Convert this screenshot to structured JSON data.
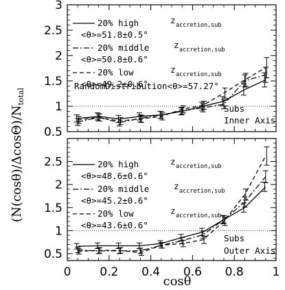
{
  "figure": {
    "ylabel": "(N(cosθ)/ΔcosΘ)/N",
    "ylabel_sub": "total",
    "xlabel": "cosθ"
  },
  "chart_data": [
    {
      "type": "line",
      "panel": "top",
      "x": [
        0.05,
        0.15,
        0.25,
        0.35,
        0.45,
        0.55,
        0.65,
        0.75,
        0.85,
        0.95
      ],
      "xlim": [
        0,
        1
      ],
      "ylim": [
        0.5,
        3
      ],
      "yticks": [
        0.5,
        1,
        1.5,
        2,
        2.5,
        3
      ],
      "ytick_labels": [
        "0.5",
        "1",
        "1.5",
        "2",
        "2.5",
        "3"
      ],
      "xticks": [
        0,
        0.2,
        0.4,
        0.6,
        0.8,
        1
      ],
      "xtick_labels": [
        "0",
        "0.2",
        "0.4",
        "0.6",
        "0.8",
        "1"
      ],
      "reference_line": 1,
      "series": [
        {
          "name": "20% high",
          "label_sub": "accretion,sub",
          "label_stat": "<θ>=51.8±0.5°",
          "dash": "solid",
          "values": [
            0.76,
            0.8,
            0.75,
            0.8,
            0.83,
            0.9,
            1.0,
            1.1,
            1.33,
            1.52
          ],
          "errors": [
            0.07,
            0.07,
            0.07,
            0.07,
            0.07,
            0.07,
            0.08,
            0.09,
            0.11,
            0.14
          ]
        },
        {
          "name": "20% middle",
          "label_sub": "accretion,sub",
          "label_stat": "<θ>=50.8±0.6°",
          "dash": "dashdot",
          "values": [
            0.69,
            0.78,
            0.68,
            0.76,
            0.83,
            0.91,
            0.97,
            1.04,
            1.5,
            1.62
          ],
          "errors": [
            0.07,
            0.07,
            0.07,
            0.07,
            0.07,
            0.07,
            0.08,
            0.09,
            0.12,
            0.15
          ]
        },
        {
          "name": "20% low",
          "label_sub": "accretion,sub",
          "label_stat": "<θ>=49.2±0.6°",
          "dash": "dashed",
          "values": [
            0.73,
            0.78,
            0.71,
            0.75,
            0.8,
            0.94,
            1.02,
            1.26,
            1.52,
            1.76
          ],
          "errors": [
            0.07,
            0.07,
            0.07,
            0.07,
            0.07,
            0.07,
            0.08,
            0.1,
            0.13,
            0.2
          ]
        }
      ],
      "annotations": {
        "random": "RandomDistribution<θ>=57.27°",
        "line1": "Subs",
        "line2": "Inner Axis"
      }
    },
    {
      "type": "line",
      "panel": "bottom",
      "x": [
        0.05,
        0.15,
        0.25,
        0.35,
        0.45,
        0.55,
        0.65,
        0.75,
        0.85,
        0.95
      ],
      "xlim": [
        0,
        1
      ],
      "ylim": [
        0.35,
        3.0
      ],
      "yticks": [
        0.5,
        1,
        1.5,
        2,
        2.5
      ],
      "ytick_labels": [
        "0.5",
        "1",
        "1.5",
        "2",
        "2.5"
      ],
      "xticks": [
        0,
        0.2,
        0.4,
        0.6,
        0.8,
        1
      ],
      "xtick_labels": [
        "0",
        "0.2",
        "0.4",
        "0.6",
        "0.8",
        "1"
      ],
      "reference_line": 1,
      "series": [
        {
          "name": "20% high",
          "label_sub": "accretion,sub",
          "label_stat": "<θ>=48.6±0.6°",
          "dash": "solid",
          "values": [
            0.66,
            0.67,
            0.67,
            0.67,
            0.72,
            0.85,
            0.97,
            1.24,
            1.5,
            1.95
          ],
          "errors": [
            0.06,
            0.06,
            0.06,
            0.06,
            0.06,
            0.07,
            0.08,
            0.08,
            0.1,
            0.1
          ]
        },
        {
          "name": "20% middle",
          "label_sub": "accretion,sub",
          "label_stat": "<θ>=45.2±0.6°",
          "dash": "dashdot",
          "values": [
            0.58,
            0.56,
            0.56,
            0.56,
            0.68,
            0.78,
            0.91,
            1.24,
            1.62,
            2.17
          ],
          "errors": [
            0.06,
            0.06,
            0.06,
            0.06,
            0.06,
            0.07,
            0.08,
            0.09,
            0.11,
            0.13
          ]
        },
        {
          "name": "20% low",
          "label_sub": "accretion,sub",
          "label_stat": "<θ>=43.6±0.6°",
          "dash": "dashed",
          "values": [
            0.55,
            0.57,
            0.57,
            0.52,
            0.68,
            0.72,
            0.8,
            1.2,
            1.78,
            2.62
          ],
          "errors": [
            0.06,
            0.06,
            0.06,
            0.06,
            0.06,
            0.07,
            0.08,
            0.09,
            0.12,
            0.2
          ]
        }
      ],
      "annotations": {
        "line1": "Subs",
        "line2": "Outer Axis"
      }
    }
  ]
}
